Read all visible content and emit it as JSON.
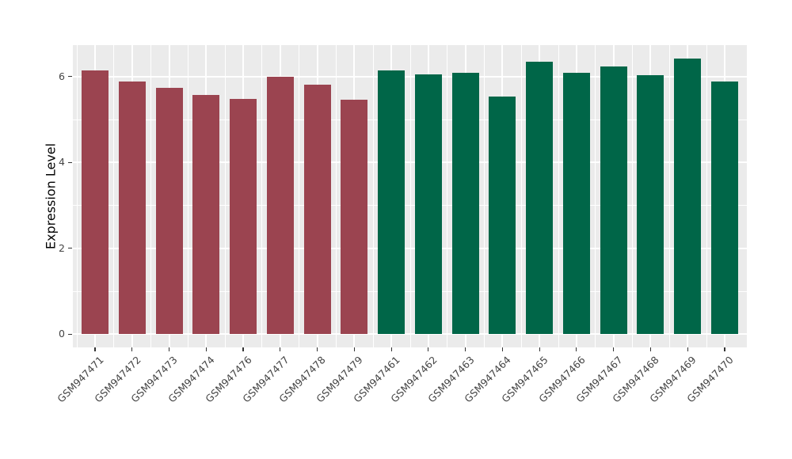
{
  "chart_data": {
    "type": "bar",
    "title": "",
    "xlabel": "",
    "ylabel": "Expression Level",
    "ylim": [
      0,
      6.73
    ],
    "yticks": [
      0,
      2,
      4,
      6
    ],
    "minor_yticks": [
      1,
      3,
      5
    ],
    "grid": "major and minor white gridlines on gray panel",
    "legend_position": "none",
    "categories": [
      "GSM947471",
      "GSM947472",
      "GSM947473",
      "GSM947474",
      "GSM947476",
      "GSM947477",
      "GSM947478",
      "GSM947479",
      "GSM947461",
      "GSM947462",
      "GSM947463",
      "GSM947464",
      "GSM947465",
      "GSM947466",
      "GSM947467",
      "GSM947468",
      "GSM947469",
      "GSM947470"
    ],
    "values": [
      6.14,
      5.88,
      5.74,
      5.58,
      5.48,
      5.99,
      5.81,
      5.46,
      6.15,
      6.06,
      6.08,
      5.53,
      6.35,
      6.09,
      6.23,
      6.03,
      6.42,
      5.88
    ],
    "bar_colors": [
      "#9B4450",
      "#9B4450",
      "#9B4450",
      "#9B4450",
      "#9B4450",
      "#9B4450",
      "#9B4450",
      "#9B4450",
      "#006648",
      "#006648",
      "#006648",
      "#006648",
      "#006648",
      "#006648",
      "#006648",
      "#006648",
      "#006648",
      "#006648"
    ],
    "series": [
      {
        "name": "maroon-group",
        "color": "#9B4450",
        "categories": [
          "GSM947471",
          "GSM947472",
          "GSM947473",
          "GSM947474",
          "GSM947476",
          "GSM947477",
          "GSM947478",
          "GSM947479"
        ]
      },
      {
        "name": "green-group",
        "color": "#006648",
        "categories": [
          "GSM947461",
          "GSM947462",
          "GSM947463",
          "GSM947464",
          "GSM947465",
          "GSM947466",
          "GSM947467",
          "GSM947468",
          "GSM947469",
          "GSM947470"
        ]
      }
    ]
  },
  "style_colors": {
    "panel_background": "#EBEBEB",
    "gridline": "#FFFFFF",
    "tick_mark": "#333333",
    "tick_label": "#454545",
    "axis_title": "#000000",
    "figure_background": "#FFFFFF"
  }
}
